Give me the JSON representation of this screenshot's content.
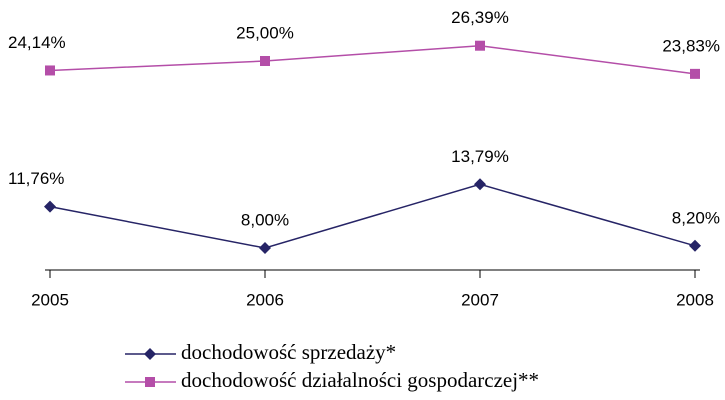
{
  "chart_data": {
    "type": "line",
    "categories": [
      "2005",
      "2006",
      "2007",
      "2008"
    ],
    "series": [
      {
        "name": "dochodowość sprzedaży*",
        "color": "#262466",
        "marker": "diamond",
        "values": [
          11.76,
          8.0,
          13.79,
          8.2
        ],
        "value_labels": [
          "11,76%",
          "8,00%",
          "13,79%",
          "8,20%"
        ]
      },
      {
        "name": "dochodowość działalności gospodarczej**",
        "color": "#b44ea8",
        "marker": "square",
        "values": [
          24.14,
          25.0,
          26.39,
          23.83
        ],
        "value_labels": [
          "24,14%",
          "25,00%",
          "26,39%",
          "23,83%"
        ]
      }
    ],
    "ylim": [
      6,
      28
    ],
    "legend": "bottom"
  }
}
